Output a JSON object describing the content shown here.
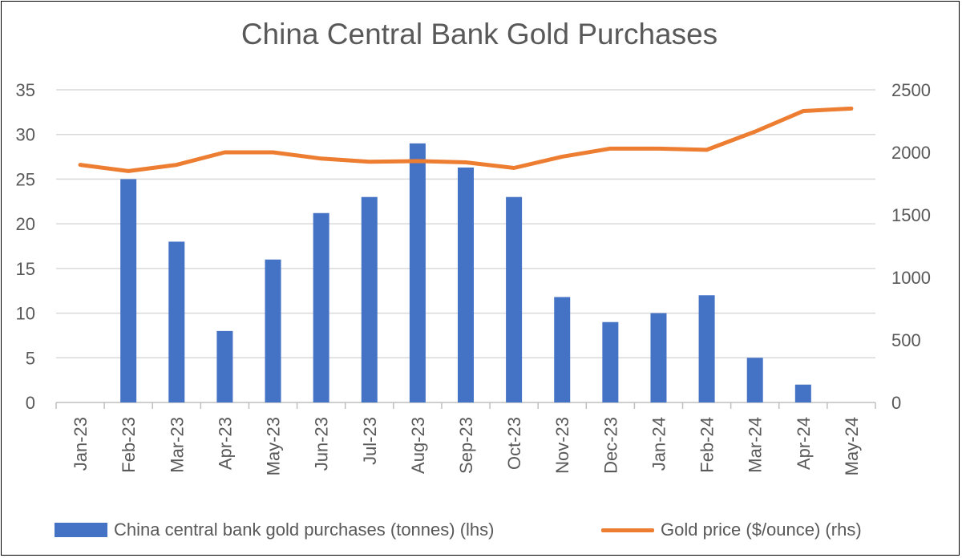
{
  "chart_data": {
    "type": "bar",
    "title": "China Central Bank Gold Purchases",
    "categories": [
      "Jan-23",
      "Feb-23",
      "Mar-23",
      "Apr-23",
      "May-23",
      "Jun-23",
      "Jul-23",
      "Aug-23",
      "Sep-23",
      "Oct-23",
      "Nov-23",
      "Dec-23",
      "Jan-24",
      "Feb-24",
      "Mar-24",
      "Apr-24",
      "May-24"
    ],
    "series": [
      {
        "name": "China central bank gold purchases (tonnes) (lhs)",
        "type": "bar",
        "axis": "left",
        "color": "#4472c4",
        "values": [
          0,
          25,
          18,
          8,
          16,
          21.2,
          23,
          29,
          26.3,
          23,
          11.8,
          9,
          10,
          12,
          5,
          2,
          0
        ]
      },
      {
        "name": "Gold price ($/ounce) (rhs)",
        "type": "line",
        "axis": "right",
        "color": "#ed7d31",
        "values": [
          1900,
          1850,
          1900,
          2000,
          2000,
          1950,
          1925,
          1930,
          1920,
          1875,
          1965,
          2030,
          2030,
          2020,
          2165,
          2330,
          2350
        ]
      }
    ],
    "ylim_left": [
      0,
      35
    ],
    "yticks_left": [
      0,
      5,
      10,
      15,
      20,
      25,
      30,
      35
    ],
    "ylim_right": [
      0,
      2500
    ],
    "yticks_right": [
      0,
      500,
      1000,
      1500,
      2000,
      2500
    ],
    "grid": true,
    "legend_position": "bottom"
  }
}
